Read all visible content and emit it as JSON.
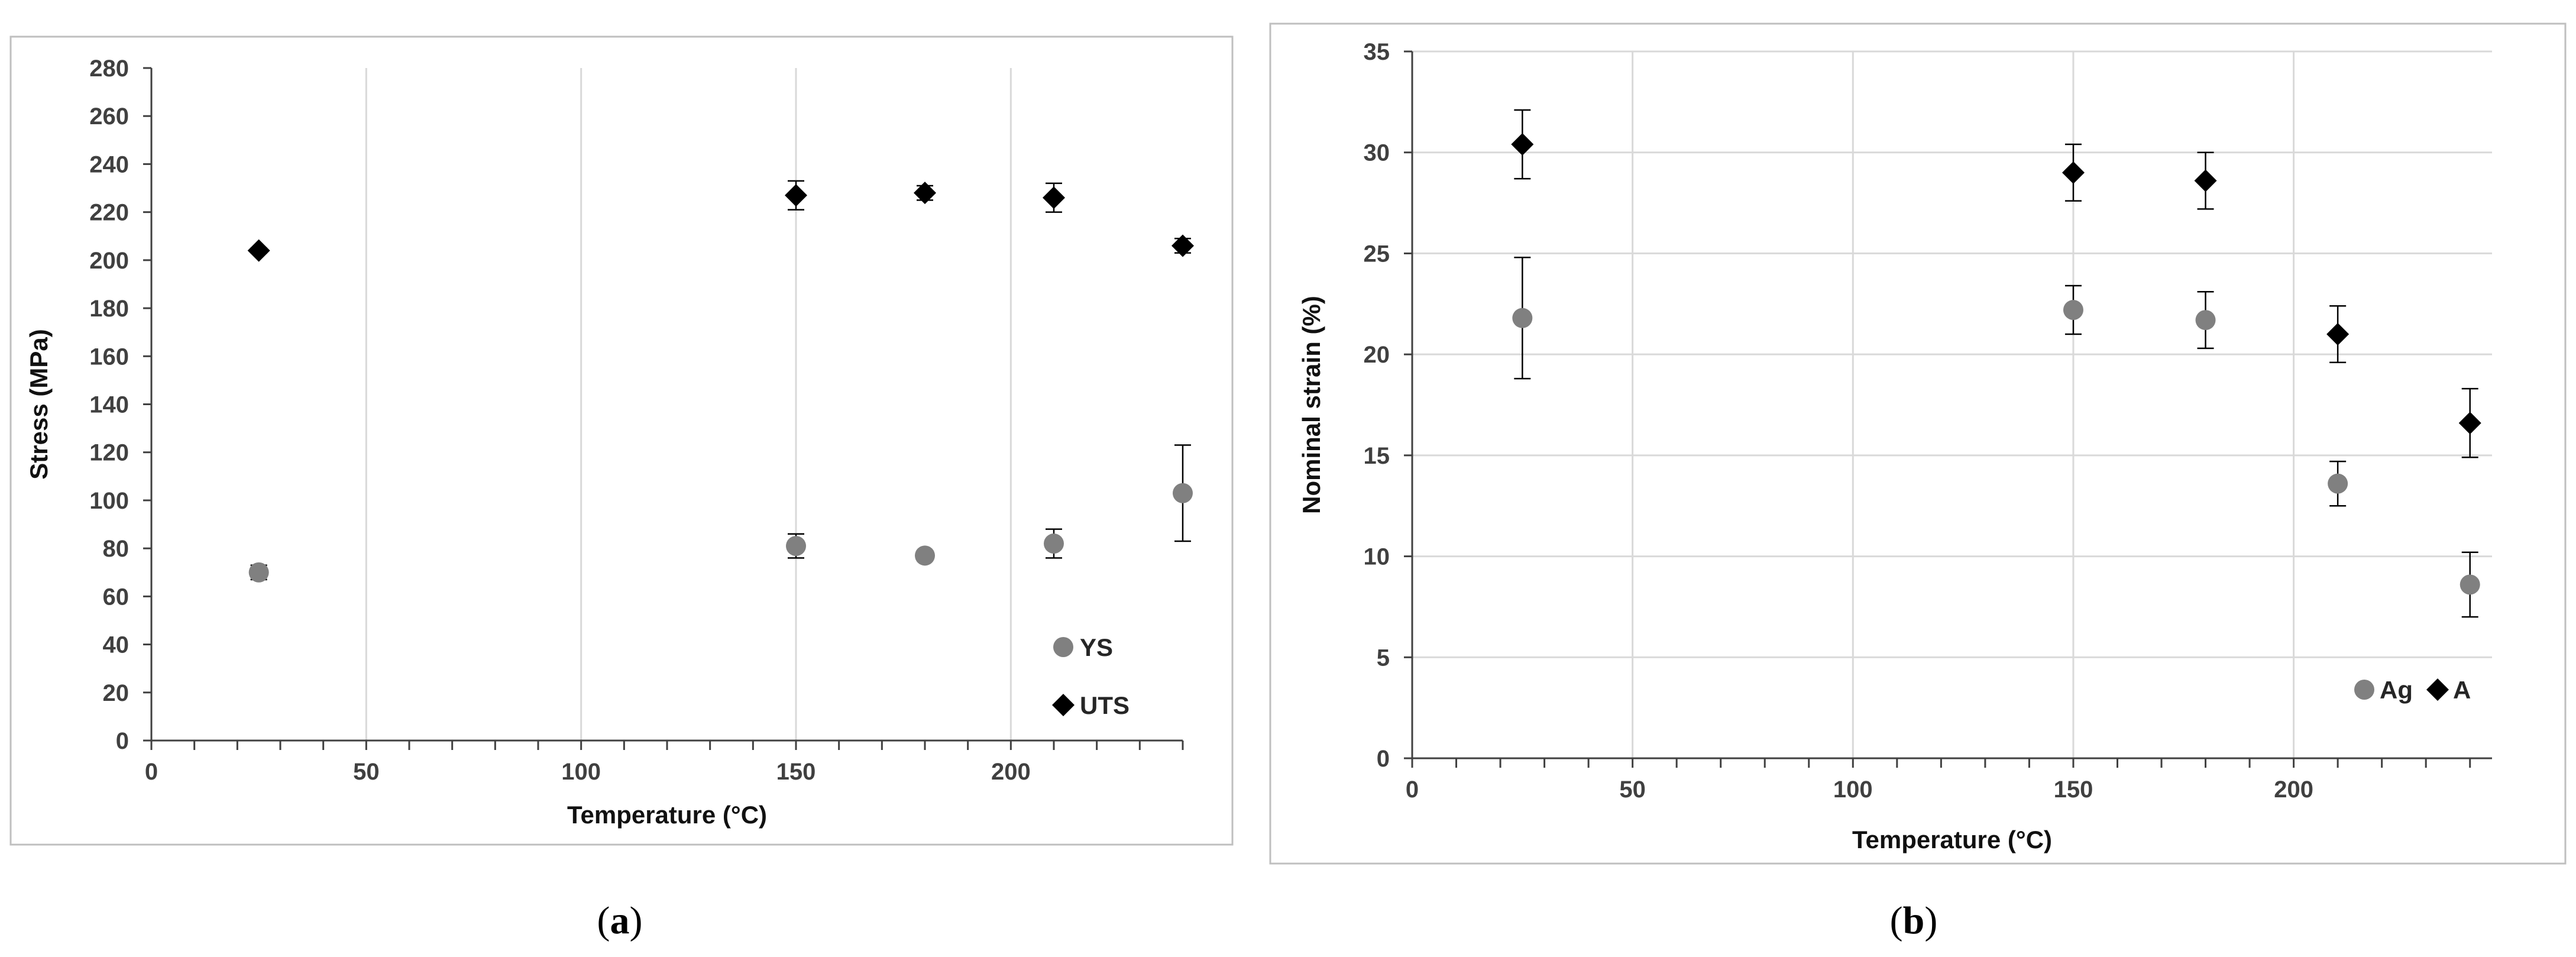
{
  "chart_data": [
    {
      "type": "scatter",
      "panel_label": "a",
      "xlabel": "Temperature (°C)",
      "ylabel": "Stress (MPa)",
      "xlim": [
        0,
        240
      ],
      "ylim": [
        0,
        280
      ],
      "x_ticks": [
        0,
        50,
        100,
        150,
        200
      ],
      "y_ticks": [
        0,
        20,
        40,
        60,
        80,
        100,
        120,
        140,
        160,
        180,
        200,
        220,
        240,
        260,
        280
      ],
      "grid": "vertical",
      "legend_position": "bottom-right",
      "series": [
        {
          "name": "YS",
          "marker": "circle",
          "color": "#808080",
          "points": [
            {
              "x": 25,
              "y": 70,
              "err": 3
            },
            {
              "x": 150,
              "y": 81,
              "err": 5
            },
            {
              "x": 180,
              "y": 77,
              "err": 2
            },
            {
              "x": 210,
              "y": 82,
              "err": 6
            },
            {
              "x": 240,
              "y": 103,
              "err": 20
            }
          ]
        },
        {
          "name": "UTS",
          "marker": "diamond",
          "color": "#000000",
          "points": [
            {
              "x": 25,
              "y": 204,
              "err": 1
            },
            {
              "x": 150,
              "y": 227,
              "err": 6
            },
            {
              "x": 180,
              "y": 228,
              "err": 3
            },
            {
              "x": 210,
              "y": 226,
              "err": 6
            },
            {
              "x": 240,
              "y": 206,
              "err": 3
            }
          ]
        }
      ]
    },
    {
      "type": "scatter",
      "panel_label": "b",
      "xlabel": "Temperature (°C)",
      "ylabel": "Nominal strain (%)",
      "xlim": [
        0,
        245
      ],
      "ylim": [
        0,
        35
      ],
      "x_ticks": [
        0,
        50,
        100,
        150,
        200
      ],
      "y_ticks": [
        0,
        5,
        10,
        15,
        20,
        25,
        30,
        35
      ],
      "grid": "both",
      "legend_position": "bottom-right",
      "series": [
        {
          "name": "Ag",
          "marker": "circle",
          "color": "#808080",
          "points": [
            {
              "x": 25,
              "y": 21.8,
              "err": 3.0
            },
            {
              "x": 150,
              "y": 22.2,
              "err": 1.2
            },
            {
              "x": 180,
              "y": 21.7,
              "err": 1.4
            },
            {
              "x": 210,
              "y": 13.6,
              "err": 1.1
            },
            {
              "x": 240,
              "y": 8.6,
              "err": 1.6
            }
          ]
        },
        {
          "name": "A",
          "marker": "diamond",
          "color": "#000000",
          "points": [
            {
              "x": 25,
              "y": 30.4,
              "err": 1.7
            },
            {
              "x": 150,
              "y": 29.0,
              "err": 1.4
            },
            {
              "x": 180,
              "y": 28.6,
              "err": 1.4
            },
            {
              "x": 210,
              "y": 21.0,
              "err": 1.4
            },
            {
              "x": 240,
              "y": 16.6,
              "err": 1.7
            }
          ]
        }
      ]
    }
  ]
}
